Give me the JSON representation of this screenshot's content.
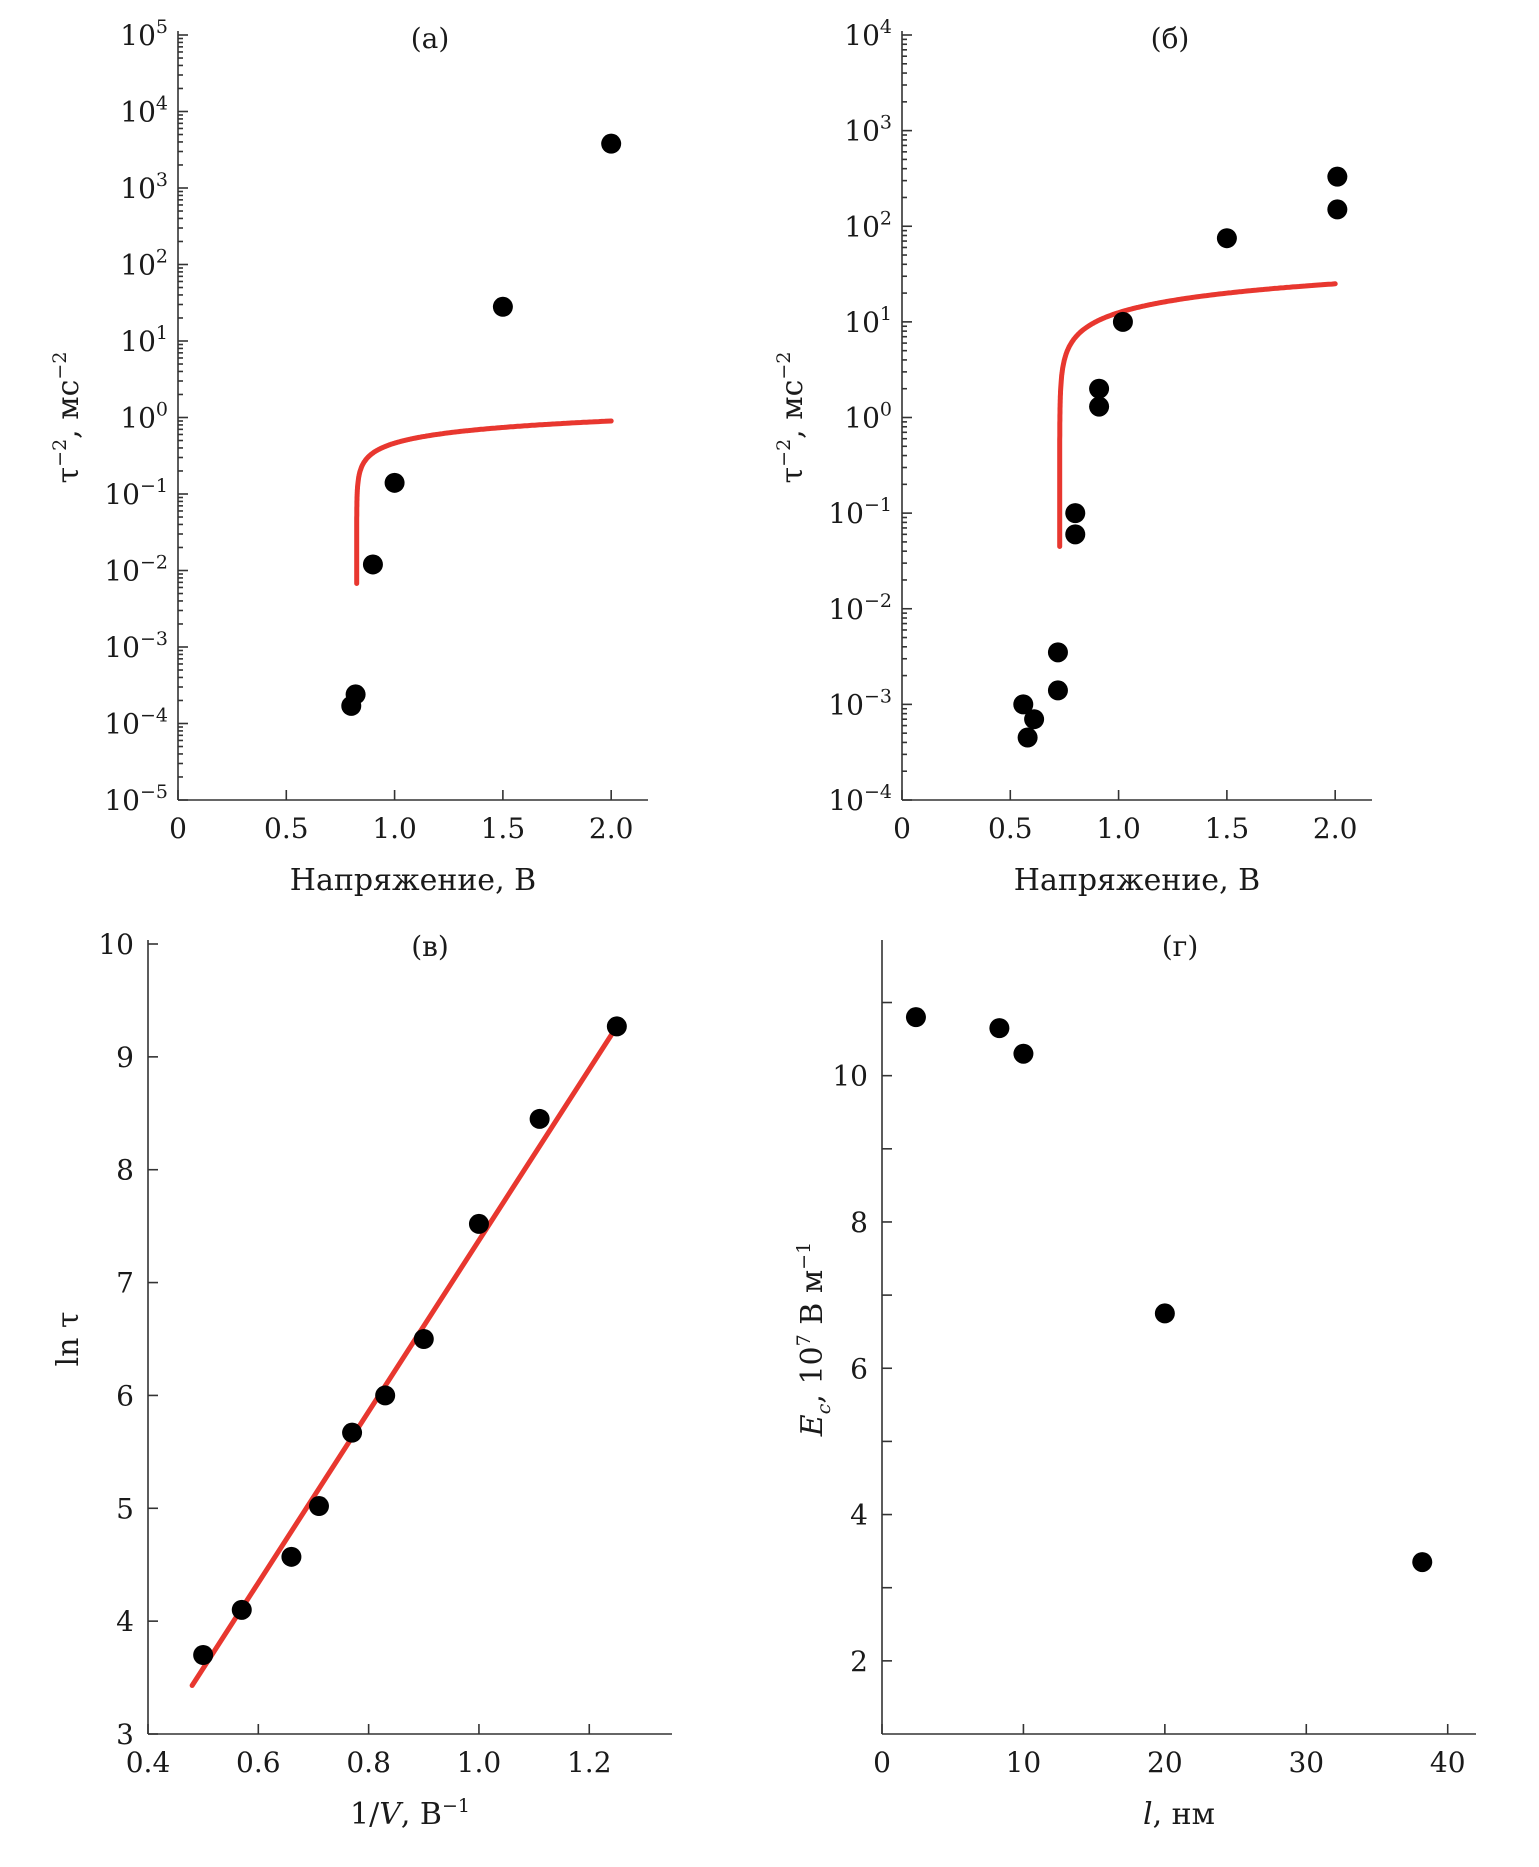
{
  "colors": {
    "fit": "#e8372f",
    "points": "#000000",
    "axis": "#333333"
  },
  "chart_data": [
    {
      "id": "a",
      "type": "scatter",
      "title": "(а)",
      "xlabel": "Напряжение, В",
      "ylabel": "τ⁻², мс⁻²",
      "x_scale": "linear",
      "y_scale": "log",
      "xlim": [
        0,
        2.17
      ],
      "ylim_exp": [
        -5,
        5
      ],
      "xticks": [
        0,
        0.5,
        1.0,
        1.5,
        2.0
      ],
      "xtick_labels": [
        "0",
        "0.5",
        "1.0",
        "1.5",
        "2.0"
      ],
      "ytick_exponents": [
        -5,
        -4,
        -3,
        -2,
        -1,
        0,
        1,
        2,
        3,
        4,
        5
      ],
      "ytick_labels": [
        "10⁻⁵",
        "10⁻⁴",
        "10⁻³",
        "10⁻²",
        "10⁻¹",
        "10⁰",
        "10¹",
        "10²",
        "10³",
        "10⁴",
        "10⁵"
      ],
      "points": [
        {
          "x": 0.8,
          "y": 0.00017
        },
        {
          "x": 0.82,
          "y": 0.00024
        },
        {
          "x": 0.9,
          "y": 0.012
        },
        {
          "x": 1.0,
          "y": 0.14
        },
        {
          "x": 1.5,
          "y": 28
        },
        {
          "x": 2.0,
          "y": 3800
        }
      ],
      "fit": {
        "vc": 0.825,
        "a": 0.0053,
        "b": 12,
        "xmax": 2.0,
        "xmin": 0.825
      }
    },
    {
      "id": "b",
      "type": "scatter",
      "title": "(б)",
      "xlabel": "Напряжение, В",
      "ylabel": "τ⁻², мс⁻²",
      "x_scale": "linear",
      "y_scale": "log",
      "xlim": [
        0,
        2.17
      ],
      "ylim_exp": [
        -4,
        4
      ],
      "xticks": [
        0,
        0.5,
        1.0,
        1.5,
        2.0
      ],
      "xtick_labels": [
        "0",
        "0.5",
        "1.0",
        "1.5",
        "2.0"
      ],
      "ytick_exponents": [
        -4,
        -3,
        -2,
        -1,
        0,
        1,
        2,
        3,
        4
      ],
      "ytick_labels": [
        "10⁻⁴",
        "10⁻³",
        "10⁻²",
        "10⁻¹",
        "10⁰",
        "10¹",
        "10²",
        "10³",
        "10⁴"
      ],
      "points": [
        {
          "x": 0.56,
          "y": 0.001
        },
        {
          "x": 0.58,
          "y": 0.00045
        },
        {
          "x": 0.61,
          "y": 0.0007
        },
        {
          "x": 0.72,
          "y": 0.0035
        },
        {
          "x": 0.72,
          "y": 0.0014
        },
        {
          "x": 0.8,
          "y": 0.1
        },
        {
          "x": 0.8,
          "y": 0.06
        },
        {
          "x": 0.91,
          "y": 2.0
        },
        {
          "x": 0.91,
          "y": 1.3
        },
        {
          "x": 1.02,
          "y": 10
        },
        {
          "x": 1.5,
          "y": 75
        },
        {
          "x": 2.01,
          "y": 330
        },
        {
          "x": 2.01,
          "y": 150
        }
      ],
      "fit": {
        "vc": 0.728,
        "a": 0.1,
        "b": 8,
        "xmax": 2.0,
        "xmin": 0.728
      }
    },
    {
      "id": "c",
      "type": "scatter",
      "title": "(в)",
      "xlabel": "1/V, В⁻¹",
      "ylabel": "ln τ",
      "x_scale": "linear",
      "y_scale": "linear",
      "xlim": [
        0.4,
        1.35
      ],
      "ylim": [
        3,
        10
      ],
      "xticks": [
        0.4,
        0.6,
        0.8,
        1.0,
        1.2
      ],
      "xtick_labels": [
        "0.4",
        "0.6",
        "0.8",
        "1.0",
        "1.2"
      ],
      "yticks": [
        3,
        4,
        5,
        6,
        7,
        8,
        9,
        10
      ],
      "ytick_labels": [
        "3",
        "4",
        "5",
        "6",
        "7",
        "8",
        "9",
        "10"
      ],
      "points": [
        {
          "x": 0.5,
          "y": 3.7
        },
        {
          "x": 0.57,
          "y": 4.1
        },
        {
          "x": 0.66,
          "y": 4.57
        },
        {
          "x": 0.71,
          "y": 5.02
        },
        {
          "x": 0.77,
          "y": 5.67
        },
        {
          "x": 0.83,
          "y": 6.0
        },
        {
          "x": 0.9,
          "y": 6.5
        },
        {
          "x": 1.0,
          "y": 7.52
        },
        {
          "x": 1.11,
          "y": 8.45
        },
        {
          "x": 1.25,
          "y": 9.27
        }
      ],
      "fit_line": {
        "x": [
          0.48,
          1.25
        ],
        "y": [
          3.43,
          9.27
        ]
      }
    },
    {
      "id": "d",
      "type": "scatter",
      "title": "(г)",
      "xlabel": "l, нм",
      "ylabel": "E_c, 10⁷ В м⁻¹",
      "x_scale": "linear",
      "y_scale": "linear",
      "xlim": [
        0,
        42
      ],
      "ylim": [
        1,
        11.8
      ],
      "xticks": [
        0,
        10,
        20,
        30,
        40
      ],
      "xtick_labels": [
        "0",
        "10",
        "20",
        "30",
        "40"
      ],
      "yticks": [
        2,
        3,
        4,
        5,
        6,
        7,
        8,
        9,
        10,
        11
      ],
      "ytick_labels": [
        "2",
        "",
        "4",
        "",
        "6",
        "",
        "8",
        "",
        "10",
        ""
      ],
      "points": [
        {
          "x": 2.4,
          "y": 10.8
        },
        {
          "x": 8.3,
          "y": 10.65
        },
        {
          "x": 10.0,
          "y": 10.3
        },
        {
          "x": 20.0,
          "y": 6.75
        },
        {
          "x": 38.2,
          "y": 3.35
        }
      ]
    }
  ]
}
